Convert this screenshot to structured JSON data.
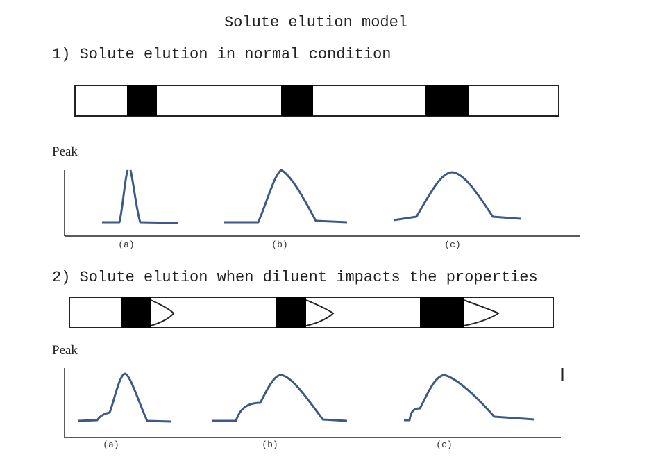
{
  "title": "Solute elution model",
  "sections": [
    {
      "heading": "1) Solute elution in normal condition",
      "y_label": "Peak",
      "peak_labels": [
        "(a)",
        "(b)",
        "(c)"
      ]
    },
    {
      "heading": "2) Solute elution when diluent impacts the properties",
      "y_label": "Peak",
      "peak_labels": [
        "(a)",
        "(b)",
        "(c)"
      ]
    }
  ]
}
